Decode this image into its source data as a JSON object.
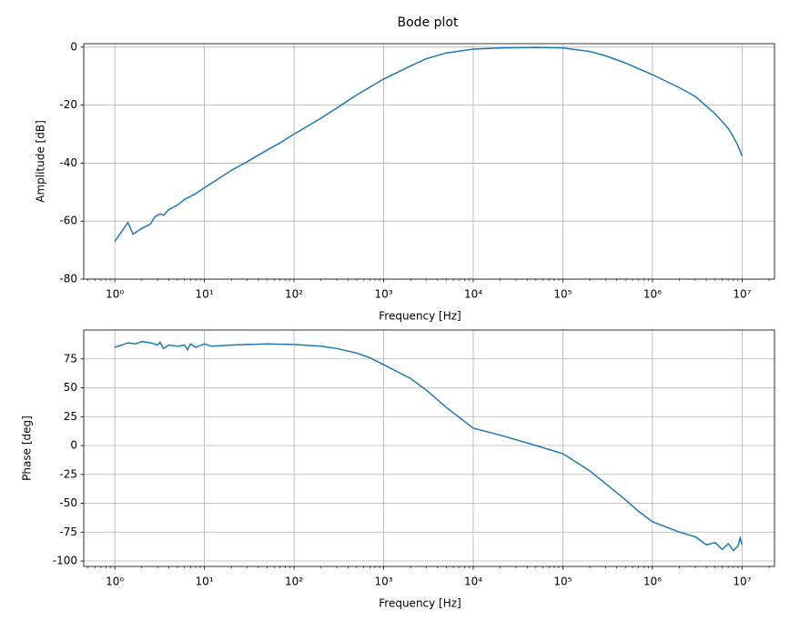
{
  "title": "Bode plot",
  "chart_data": [
    {
      "type": "line",
      "x_label": "Frequency [Hz]",
      "y_label": "Amplitude [dB]",
      "x": [
        1,
        1.4,
        1.6,
        2,
        2.5,
        2.8,
        3.2,
        3.5,
        4,
        5,
        6,
        7,
        8,
        10,
        15,
        20,
        30,
        50,
        70,
        100,
        200,
        300,
        500,
        1000,
        2000,
        3000,
        5000,
        10000,
        20000,
        50000,
        100000,
        200000,
        300000,
        500000,
        1000000,
        2000000,
        3000000,
        5000000,
        7000000,
        8000000,
        9000000,
        10000000
      ],
      "series": [
        {
          "name": "Amplitude",
          "color": "#1f77b4",
          "values": [
            -67,
            -60.5,
            -64.5,
            -62.5,
            -61,
            -58.5,
            -57.5,
            -58,
            -56,
            -54.5,
            -52.5,
            -51.5,
            -50.5,
            -48.5,
            -45,
            -42.5,
            -39.5,
            -35.5,
            -33,
            -30,
            -24.5,
            -21,
            -16.5,
            -11,
            -6.5,
            -4,
            -2,
            -0.7,
            -0.3,
            -0.1,
            -0.3,
            -1.5,
            -3,
            -5.5,
            -9.5,
            -14,
            -17,
            -23,
            -28,
            -31,
            -34,
            -37.5
          ]
        }
      ],
      "xscale": "log",
      "xlim": [
        0.45,
        23000000
      ],
      "xticks": [
        {
          "value": 1,
          "label": "10⁰"
        },
        {
          "value": 10,
          "label": "10¹"
        },
        {
          "value": 100,
          "label": "10²"
        },
        {
          "value": 1000,
          "label": "10³"
        },
        {
          "value": 10000,
          "label": "10⁴"
        },
        {
          "value": 100000,
          "label": "10⁵"
        },
        {
          "value": 1000000,
          "label": "10⁶"
        },
        {
          "value": 10000000,
          "label": "10⁷"
        }
      ],
      "ylim": [
        -80,
        1.2
      ],
      "yticks": [
        -80,
        -60,
        -40,
        -20,
        0
      ],
      "grid": true
    },
    {
      "type": "line",
      "x_label": "Frequency [Hz]",
      "y_label": "Phase [deg]",
      "x": [
        1,
        1.2,
        1.4,
        1.7,
        2,
        2.5,
        3,
        3.2,
        3.5,
        4,
        5,
        6,
        6.5,
        7,
        8,
        10,
        12,
        20,
        50,
        100,
        200,
        300,
        500,
        700,
        1000,
        2000,
        3000,
        5000,
        10000,
        20000,
        50000,
        100000,
        200000,
        500000,
        700000,
        1000000,
        2000000,
        3000000,
        4000000,
        5000000,
        6000000,
        7000000,
        8000000,
        9000000,
        9500000,
        10000000
      ],
      "series": [
        {
          "name": "Phase",
          "color": "#1f77b4",
          "values": [
            85,
            87,
            89,
            88,
            90,
            89,
            87,
            89.5,
            84,
            87,
            86,
            87,
            83,
            88,
            85,
            88,
            86,
            87,
            88,
            87.5,
            86,
            84,
            80,
            76,
            70,
            58,
            48,
            33,
            15,
            9,
            0,
            -7,
            -22,
            -47,
            -57,
            -66,
            -75,
            -79,
            -86,
            -84,
            -90,
            -85,
            -91,
            -87,
            -80,
            -86
          ]
        }
      ],
      "xscale": "log",
      "xlim": [
        0.45,
        23000000
      ],
      "xticks": [
        {
          "value": 1,
          "label": "10⁰"
        },
        {
          "value": 10,
          "label": "10¹"
        },
        {
          "value": 100,
          "label": "10²"
        },
        {
          "value": 1000,
          "label": "10³"
        },
        {
          "value": 10000,
          "label": "10⁴"
        },
        {
          "value": 100000,
          "label": "10⁵"
        },
        {
          "value": 1000000,
          "label": "10⁶"
        },
        {
          "value": 10000000,
          "label": "10⁷"
        }
      ],
      "ylim": [
        -104.7,
        100
      ],
      "yticks": [
        -100,
        -75,
        -50,
        -25,
        0,
        25,
        50,
        75
      ],
      "grid": true
    }
  ]
}
